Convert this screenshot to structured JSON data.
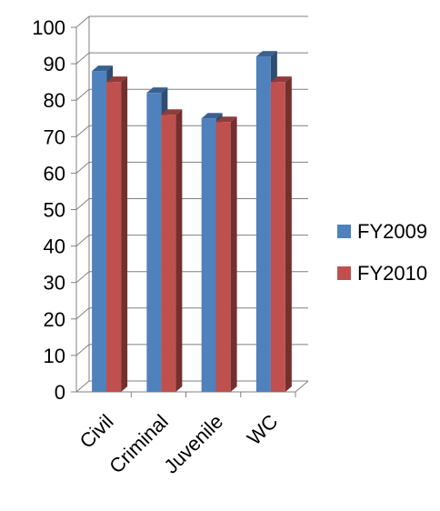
{
  "chart_data": {
    "type": "bar",
    "style": "3d-clustered-column",
    "categories": [
      "Civil",
      "Criminal",
      "Juvenile",
      "WC"
    ],
    "series": [
      {
        "name": "FY2009",
        "values": [
          88,
          82,
          75,
          92
        ],
        "color": "#4F81BD"
      },
      {
        "name": "FY2010",
        "values": [
          85,
          76,
          74,
          85
        ],
        "color": "#C0504D"
      }
    ],
    "yticks": [
      0,
      10,
      20,
      30,
      40,
      50,
      60,
      70,
      80,
      90,
      100
    ],
    "ylim": [
      0,
      100
    ],
    "title": "",
    "xlabel": "",
    "ylabel": "",
    "grid": true,
    "legend": "right"
  }
}
